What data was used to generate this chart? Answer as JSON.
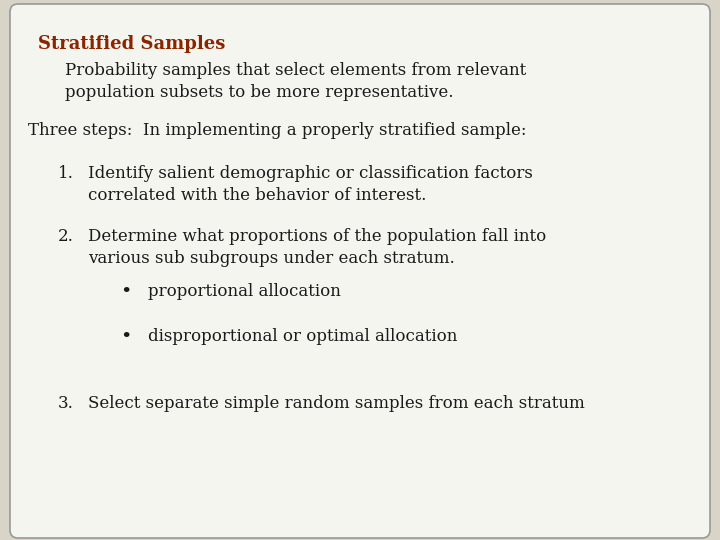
{
  "background_color": "#d8d4c8",
  "box_color": "#f5f5f0",
  "box_edge_color": "#999999",
  "title": "Stratified Samples",
  "title_color": "#8B2500",
  "subtitle_line1": "Probability samples that select elements from relevant",
  "subtitle_line2": "population subsets to be more representative.",
  "subtitle_color": "#1a1a1a",
  "three_steps": "Three steps:  In implementing a properly stratified sample:",
  "three_steps_color": "#1a1a1a",
  "items": [
    {
      "number": "1.",
      "line1": "Identify salient demographic or classification factors",
      "line2": "correlated with the behavior of interest."
    },
    {
      "number": "2.",
      "line1": "Determine what proportions of the population fall into",
      "line2": "various sub subgroups under each stratum."
    },
    {
      "number": "3.",
      "line1": "Select separate simple random samples from each stratum",
      "line2": ""
    }
  ],
  "bullets": [
    "proportional allocation",
    "disproportional or optimal allocation"
  ],
  "font_size_title": 13,
  "font_size_body": 12,
  "font_family": "DejaVu Serif"
}
